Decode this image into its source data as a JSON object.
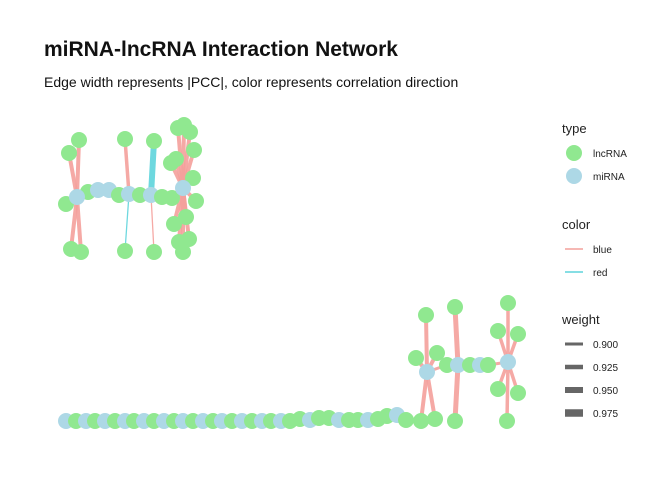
{
  "chart_data": {
    "type": "network",
    "title": "miRNA-lncRNA Interaction Network",
    "subtitle": "Edge width represents |PCC|, color represents correlation direction",
    "legend_position": "right",
    "legends": {
      "type": {
        "title": "type",
        "items": [
          {
            "label": "lncRNA",
            "color": "#90e890"
          },
          {
            "label": "miRNA",
            "color": "#add8e6"
          }
        ]
      },
      "color": {
        "title": "color",
        "items": [
          {
            "label": "blue",
            "color": "#f4a09c"
          },
          {
            "label": "red",
            "color": "#5fd4dc"
          }
        ]
      },
      "weight": {
        "title": "weight",
        "items": [
          {
            "label": "0.900",
            "value": 0.9
          },
          {
            "label": "0.925",
            "value": 0.925
          },
          {
            "label": "0.950",
            "value": 0.95
          },
          {
            "label": "0.975",
            "value": 0.975
          }
        ]
      }
    },
    "node_colors": {
      "lncRNA": "#90e890",
      "miRNA": "#add8e6"
    },
    "edge_colors": {
      "blue": "#f4a09c",
      "red": "#5fd4dc"
    }
  }
}
